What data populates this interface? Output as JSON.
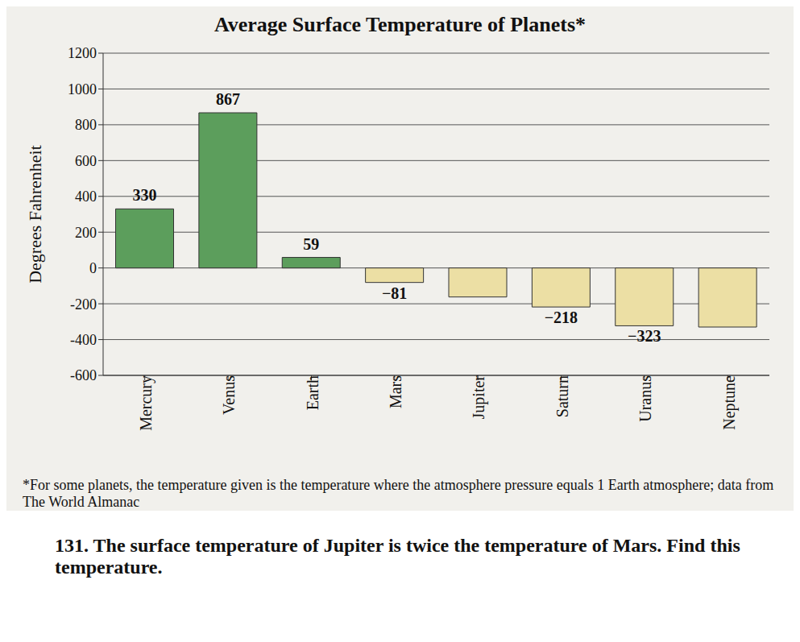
{
  "chart_data": {
    "type": "bar",
    "title": "Average Surface Temperature of Planets*",
    "y_label": "Degrees Fahrenheit",
    "categories": [
      "Mercury",
      "Venus",
      "Earth",
      "Mars",
      "Jupiter",
      "Saturn",
      "Uranus",
      "Neptune"
    ],
    "values": [
      330,
      867,
      59,
      -81,
      -162,
      -218,
      -323,
      -330
    ],
    "value_labels": [
      "330",
      "867",
      "59",
      "−81",
      null,
      "−218",
      "−323",
      null
    ],
    "colors": [
      "#5c9e5c",
      "#5c9e5c",
      "#5c9e5c",
      "#ecdfa4",
      "#ecdfa4",
      "#ecdfa4",
      "#ecdfa4",
      "#ecdfa4"
    ],
    "ylim": [
      -600,
      1200
    ],
    "yticks": [
      -600,
      -400,
      -200,
      0,
      200,
      400,
      600,
      800,
      1000,
      1200
    ],
    "grid": true,
    "data_labels": true,
    "annotations": [
      "*For some planets, the temperature given is the temperature where the atmosphere pressure equals 1 Earth atmosphere; data from The World Almanac",
      "131. The surface temperature of Jupiter is twice the temperature of Mars. Find this temperature."
    ]
  }
}
